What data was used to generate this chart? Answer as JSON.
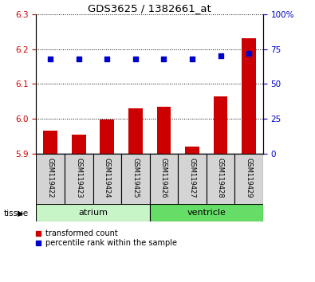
{
  "title": "GDS3625 / 1382661_at",
  "samples": [
    "GSM119422",
    "GSM119423",
    "GSM119424",
    "GSM119425",
    "GSM119426",
    "GSM119427",
    "GSM119428",
    "GSM119429"
  ],
  "red_values": [
    5.965,
    5.955,
    5.999,
    6.03,
    6.035,
    5.92,
    6.065,
    6.23
  ],
  "blue_values": [
    68,
    68,
    68,
    68,
    68,
    68,
    70,
    72
  ],
  "ylim_left": [
    5.9,
    6.3
  ],
  "ylim_right": [
    0,
    100
  ],
  "yticks_left": [
    5.9,
    6.0,
    6.1,
    6.2,
    6.3
  ],
  "yticks_right": [
    0,
    25,
    50,
    75,
    100
  ],
  "groups": [
    {
      "label": "atrium",
      "start": 0,
      "end": 4,
      "color": "#c8f5c8"
    },
    {
      "label": "ventricle",
      "start": 4,
      "end": 8,
      "color": "#66dd66"
    }
  ],
  "tissue_label": "tissue",
  "bar_color": "#cc0000",
  "dot_color": "#0000cc",
  "bar_width": 0.5,
  "legend_items": [
    "transformed count",
    "percentile rank within the sample"
  ],
  "tick_label_color_left": "#cc0000",
  "tick_label_color_right": "#0000cc",
  "sample_box_color": "#d4d4d4"
}
